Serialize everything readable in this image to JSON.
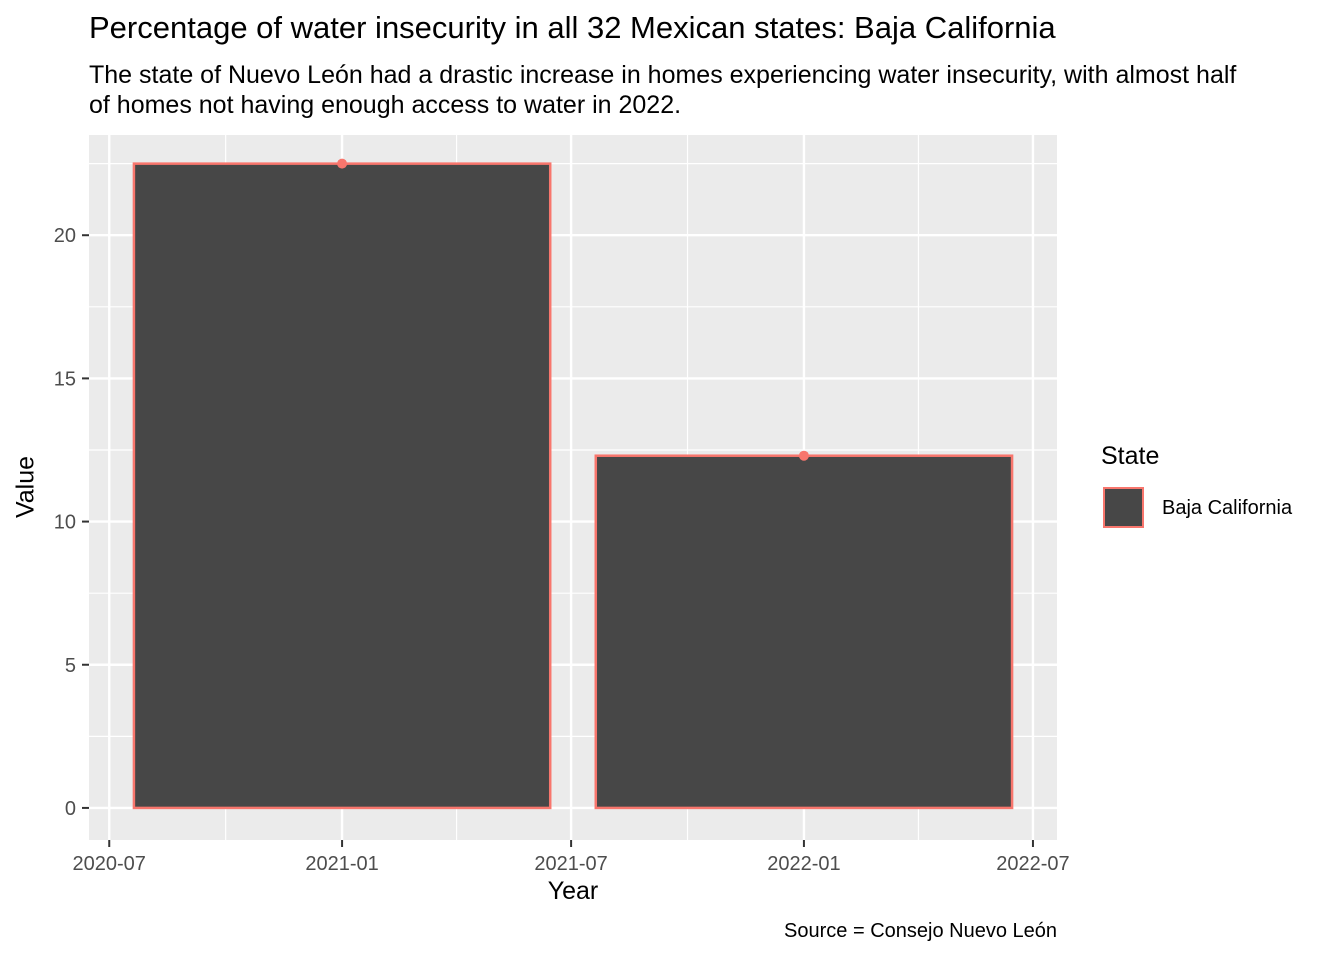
{
  "chart_data": {
    "type": "bar",
    "title": "Percentage of water insecurity in all 32 Mexican states: Baja California",
    "subtitle": "The state of Nuevo León had a drastic increase in homes experiencing water insecurity, with almost half of homes not having enough access to water in 2022.",
    "caption": "Source = Consejo Nuevo León",
    "xlabel": "Year",
    "ylabel": "Value",
    "x_axis_type": "date",
    "xlim": [
      "2020-06-15",
      "2022-07-20"
    ],
    "ylim": [
      -1.12,
      23.5
    ],
    "x_ticks": [
      "2020-07",
      "2021-01",
      "2021-07",
      "2022-01",
      "2022-07"
    ],
    "y_ticks": [
      0,
      5,
      10,
      15,
      20
    ],
    "categories": [
      "2021-01-01",
      "2022-01-01"
    ],
    "series": [
      {
        "name": "Baja California",
        "values": [
          22.5,
          12.3
        ]
      }
    ],
    "legend": {
      "title": "State",
      "position": "right"
    },
    "colors": {
      "bar_fill": "#474747",
      "outline": "#f8766d",
      "panel": "#ebebeb",
      "grid": "#ffffff"
    },
    "grid": true
  }
}
